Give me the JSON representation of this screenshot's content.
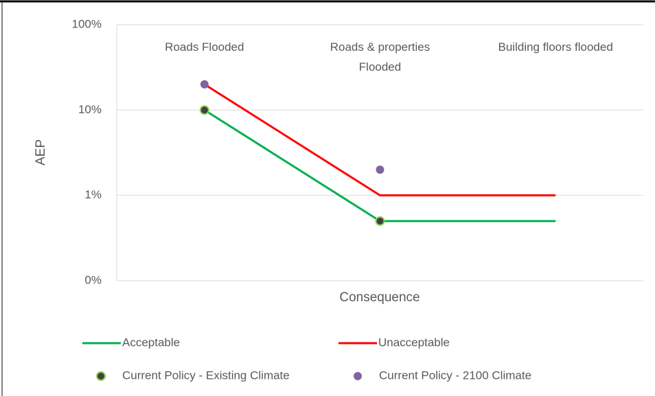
{
  "chart_data": {
    "type": "line",
    "categories": [
      "Roads Flooded",
      "Roads & properties Flooded",
      "Building floors flooded"
    ],
    "xlabel": "Consequence",
    "ylabel": "AEP",
    "log_scale": true,
    "ylim": [
      0.1,
      100
    ],
    "yticks": [
      {
        "value": 0.1,
        "label": "0%"
      },
      {
        "value": 1,
        "label": "1%"
      },
      {
        "value": 10,
        "label": "10%"
      },
      {
        "value": 100,
        "label": "100%"
      }
    ],
    "grid": true,
    "legend": "bottom",
    "series": [
      {
        "name": "Acceptable",
        "style": "line",
        "color": "#00b050",
        "values": [
          10,
          0.5,
          0.5
        ]
      },
      {
        "name": "Unacceptable",
        "style": "line",
        "color": "#ff0000",
        "values": [
          20,
          1,
          1
        ]
      },
      {
        "name": "Current Policy - Existing Climate",
        "style": "point",
        "color": "#404040",
        "edge": "#92d050",
        "values": [
          10,
          0.5,
          null
        ]
      },
      {
        "name": "Current Policy - 2100 Climate",
        "style": "point",
        "color": "#8064a2",
        "values": [
          20,
          2,
          null
        ]
      }
    ]
  }
}
